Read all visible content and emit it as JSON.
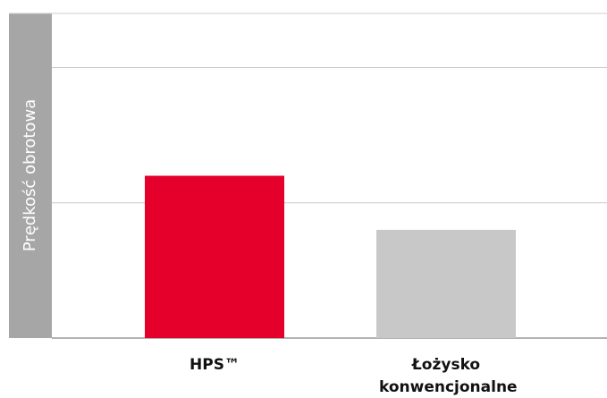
{
  "chart_data": {
    "type": "bar",
    "y_label": "Prędkość obrotowa",
    "categories": [
      "HPS™",
      "Łożysko konwencjonalne"
    ],
    "values": [
      1.2,
      0.8
    ],
    "colors": [
      "#e4002b",
      "#c8c8c8"
    ],
    "ylim": [
      0,
      2.4
    ],
    "yticks": [
      0,
      1,
      2
    ],
    "grid": true
  }
}
